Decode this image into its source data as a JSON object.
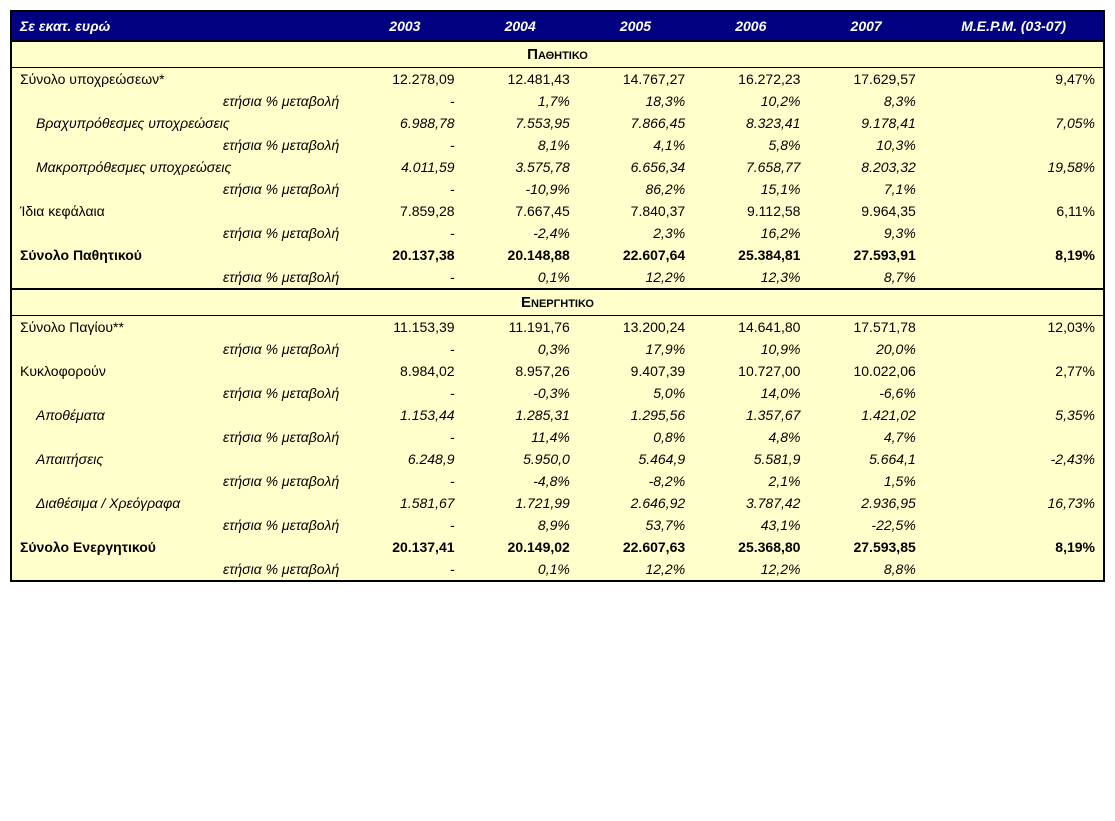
{
  "style": {
    "header_bg": "#000080",
    "header_fg": "#ffffff",
    "body_bg": "#ffffcc",
    "border_color": "#000000",
    "font_family": "Verdana, Arial, sans-serif",
    "header_font_style": "bold italic",
    "section_font_variant": "small-caps",
    "cell_font_size_pt": 11,
    "header_font_size_pt": 12
  },
  "header": {
    "title": "Σε εκατ. ευρώ",
    "years": [
      "2003",
      "2004",
      "2005",
      "2006",
      "2007"
    ],
    "last": "Μ.Ε.Ρ.Μ. (03-07)"
  },
  "sections": [
    {
      "title": "Παθητικο",
      "rows": [
        {
          "label": "Σύνολο υποχρεώσεων*",
          "indent": 0,
          "italic": false,
          "bold": false,
          "v": [
            "12.278,09",
            "12.481,43",
            "14.767,27",
            "16.272,23",
            "17.629,57",
            "9,47%"
          ]
        },
        {
          "label": "ετήσια % μεταβολή",
          "indent": 2,
          "italic": true,
          "bold": false,
          "v": [
            "-",
            "1,7%",
            "18,3%",
            "10,2%",
            "8,3%",
            ""
          ]
        },
        {
          "label": "Βραχυπρόθεσμες υποχρεώσεις",
          "indent": 1,
          "italic": true,
          "bold": false,
          "v": [
            "6.988,78",
            "7.553,95",
            "7.866,45",
            "8.323,41",
            "9.178,41",
            "7,05%"
          ]
        },
        {
          "label": "ετήσια % μεταβολή",
          "indent": 2,
          "italic": true,
          "bold": false,
          "v": [
            "-",
            "8,1%",
            "4,1%",
            "5,8%",
            "10,3%",
            ""
          ]
        },
        {
          "label": "Μακροπρόθεσμες υποχρεώσεις",
          "indent": 1,
          "italic": true,
          "bold": false,
          "v": [
            "4.011,59",
            "3.575,78",
            "6.656,34",
            "7.658,77",
            "8.203,32",
            "19,58%"
          ]
        },
        {
          "label": "ετήσια % μεταβολή",
          "indent": 2,
          "italic": true,
          "bold": false,
          "v": [
            "-",
            "-10,9%",
            "86,2%",
            "15,1%",
            "7,1%",
            ""
          ]
        },
        {
          "label": "Ίδια κεφάλαια",
          "indent": 0,
          "italic": false,
          "bold": false,
          "v": [
            "7.859,28",
            "7.667,45",
            "7.840,37",
            "9.112,58",
            "9.964,35",
            "6,11%"
          ]
        },
        {
          "label": "ετήσια % μεταβολή",
          "indent": 2,
          "italic": true,
          "bold": false,
          "v": [
            "-",
            "-2,4%",
            "2,3%",
            "16,2%",
            "9,3%",
            ""
          ]
        },
        {
          "label": "Σύνολο Παθητικού",
          "indent": 0,
          "italic": false,
          "bold": true,
          "v": [
            "20.137,38",
            "20.148,88",
            "22.607,64",
            "25.384,81",
            "27.593,91",
            "8,19%"
          ]
        },
        {
          "label": "ετήσια % μεταβολή",
          "indent": 2,
          "italic": true,
          "bold": false,
          "v": [
            "-",
            "0,1%",
            "12,2%",
            "12,3%",
            "8,7%",
            ""
          ]
        }
      ]
    },
    {
      "title": "Ενεργητικο",
      "rows": [
        {
          "label": "Σύνολο Παγίου**",
          "indent": 0,
          "italic": false,
          "bold": false,
          "v": [
            "11.153,39",
            "11.191,76",
            "13.200,24",
            "14.641,80",
            "17.571,78",
            "12,03%"
          ]
        },
        {
          "label": "ετήσια % μεταβολή",
          "indent": 2,
          "italic": true,
          "bold": false,
          "v": [
            "-",
            "0,3%",
            "17,9%",
            "10,9%",
            "20,0%",
            ""
          ]
        },
        {
          "label": "Κυκλοφορούν",
          "indent": 0,
          "italic": false,
          "bold": false,
          "v": [
            "8.984,02",
            "8.957,26",
            "9.407,39",
            "10.727,00",
            "10.022,06",
            "2,77%"
          ]
        },
        {
          "label": "ετήσια % μεταβολή",
          "indent": 2,
          "italic": true,
          "bold": false,
          "v": [
            "-",
            "-0,3%",
            "5,0%",
            "14,0%",
            "-6,6%",
            ""
          ]
        },
        {
          "label": "Αποθέματα",
          "indent": 1,
          "italic": true,
          "bold": false,
          "v": [
            "1.153,44",
            "1.285,31",
            "1.295,56",
            "1.357,67",
            "1.421,02",
            "5,35%"
          ]
        },
        {
          "label": "ετήσια % μεταβολή",
          "indent": 2,
          "italic": true,
          "bold": false,
          "v": [
            "-",
            "11,4%",
            "0,8%",
            "4,8%",
            "4,7%",
            ""
          ]
        },
        {
          "label": "Απαιτήσεις",
          "indent": 1,
          "italic": true,
          "bold": false,
          "v": [
            "6.248,9",
            "5.950,0",
            "5.464,9",
            "5.581,9",
            "5.664,1",
            "-2,43%"
          ]
        },
        {
          "label": "ετήσια % μεταβολή",
          "indent": 2,
          "italic": true,
          "bold": false,
          "v": [
            "-",
            "-4,8%",
            "-8,2%",
            "2,1%",
            "1,5%",
            ""
          ]
        },
        {
          "label": "Διαθέσιμα / Χρεόγραφα",
          "indent": 1,
          "italic": true,
          "bold": false,
          "v": [
            "1.581,67",
            "1.721,99",
            "2.646,92",
            "3.787,42",
            "2.936,95",
            "16,73%"
          ]
        },
        {
          "label": "ετήσια % μεταβολή",
          "indent": 2,
          "italic": true,
          "bold": false,
          "v": [
            "-",
            "8,9%",
            "53,7%",
            "43,1%",
            "-22,5%",
            ""
          ]
        },
        {
          "label": "Σύνολο Ενεργητικού",
          "indent": 0,
          "italic": false,
          "bold": true,
          "v": [
            "20.137,41",
            "20.149,02",
            "22.607,63",
            "25.368,80",
            "27.593,85",
            "8,19%"
          ]
        },
        {
          "label": "ετήσια % μεταβολή",
          "indent": 2,
          "italic": true,
          "bold": false,
          "v": [
            "-",
            "0,1%",
            "12,2%",
            "12,2%",
            "8,8%",
            ""
          ]
        }
      ]
    }
  ]
}
